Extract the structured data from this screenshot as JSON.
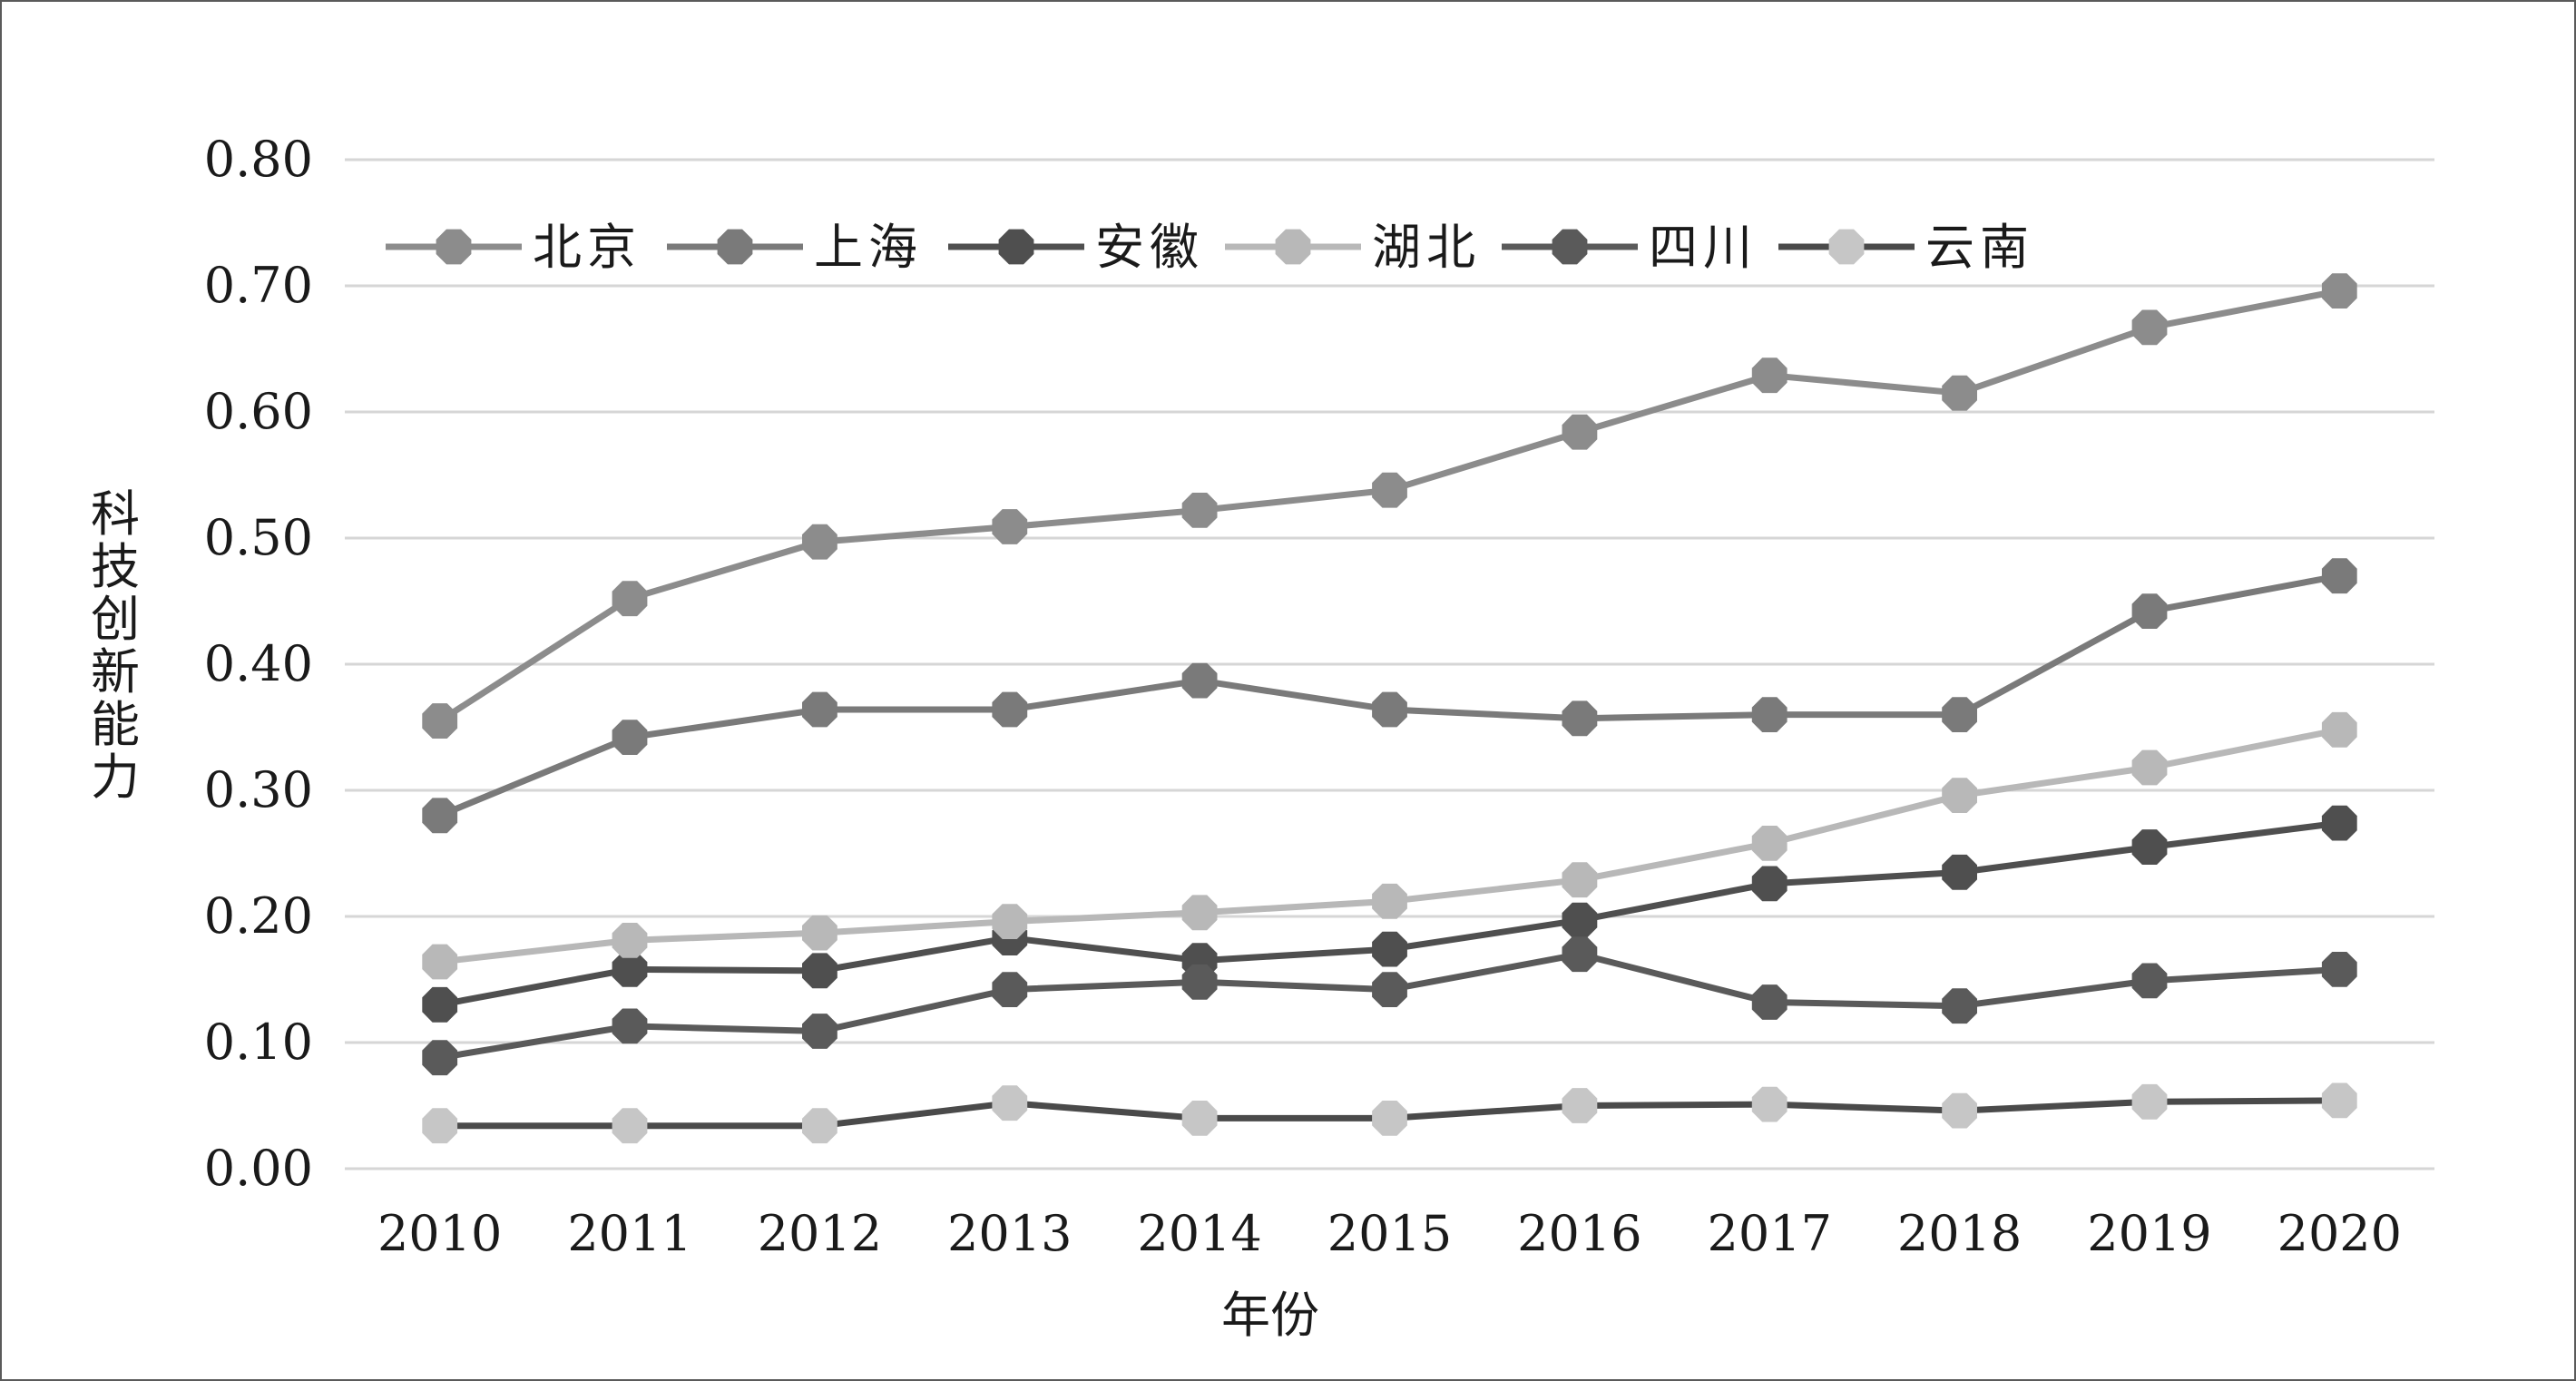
{
  "chart_data": {
    "type": "line",
    "title": "",
    "xlabel": "年份",
    "ylabel": "科技创新能力",
    "categories": [
      "2010",
      "2011",
      "2012",
      "2013",
      "2014",
      "2015",
      "2016",
      "2017",
      "2018",
      "2019",
      "2020"
    ],
    "ylim": [
      0,
      0.8
    ],
    "y_ticks": [
      "0.00",
      "0.10",
      "0.20",
      "0.30",
      "0.40",
      "0.50",
      "0.60",
      "0.70",
      "0.80"
    ],
    "grid": true,
    "legend_position": "top-left",
    "series": [
      {
        "name": "北京",
        "color": "#8c8c8c",
        "marker": "octagon",
        "values": [
          0.355,
          0.452,
          0.497,
          0.509,
          0.522,
          0.538,
          0.584,
          0.629,
          0.615,
          0.667,
          0.696
        ]
      },
      {
        "name": "上海",
        "color": "#7a7a7a",
        "marker": "octagon",
        "values": [
          0.28,
          0.342,
          0.364,
          0.364,
          0.387,
          0.364,
          0.357,
          0.36,
          0.36,
          0.442,
          0.47
        ]
      },
      {
        "name": "安徽",
        "color": "#4f4f4f",
        "marker": "octagon",
        "values": [
          0.13,
          0.158,
          0.157,
          0.183,
          0.165,
          0.174,
          0.197,
          0.226,
          0.235,
          0.255,
          0.274
        ]
      },
      {
        "name": "湖北",
        "color": "#b8b8b8",
        "marker": "octagon",
        "values": [
          0.164,
          0.181,
          0.187,
          0.196,
          0.203,
          0.212,
          0.229,
          0.258,
          0.296,
          0.318,
          0.348
        ]
      },
      {
        "name": "四川",
        "color": "#5a5a5a",
        "marker": "octagon",
        "values": [
          0.088,
          0.113,
          0.109,
          0.142,
          0.148,
          0.142,
          0.17,
          0.132,
          0.129,
          0.149,
          0.158
        ]
      },
      {
        "name": "云南",
        "color": "#c6c6c6",
        "line_color": "#4a4a4a",
        "marker": "octagon",
        "values": [
          0.034,
          0.034,
          0.034,
          0.052,
          0.04,
          0.04,
          0.05,
          0.051,
          0.046,
          0.053,
          0.054
        ]
      }
    ]
  }
}
